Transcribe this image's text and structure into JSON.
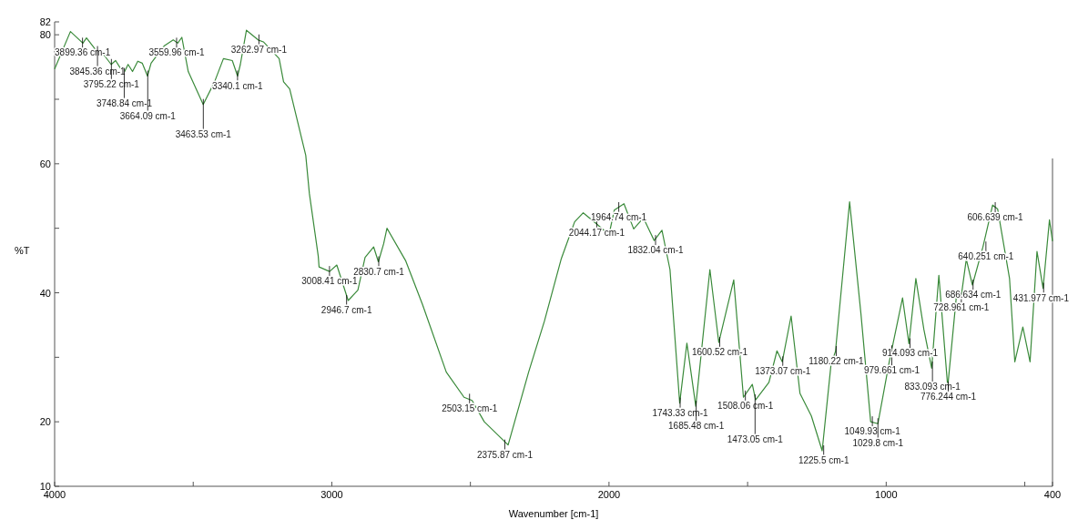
{
  "chart_data": {
    "type": "line",
    "xlabel": "Wavenumber [cm-1]",
    "ylabel": "%T",
    "xlim": [
      4000,
      400
    ],
    "xticks": [
      4000,
      {
        "value": 3500,
        "label": null
      },
      3000,
      {
        "value": 2500,
        "label": null
      },
      2000,
      {
        "value": 1500,
        "label": null
      },
      1000,
      {
        "value": 500,
        "label": null
      },
      400
    ],
    "ylim": [
      10,
      82
    ],
    "yticks": [
      10,
      20,
      {
        "value": 30,
        "label": null
      },
      40,
      {
        "value": 50,
        "label": null
      },
      60,
      {
        "value": 70,
        "label": null
      },
      80,
      82
    ],
    "grid": false,
    "marker": "none",
    "line_style": "solid",
    "series": [
      {
        "color": "#3a8a3a",
        "x": [
          4000,
          3943,
          3898,
          3885,
          3847,
          3828,
          3796,
          3780,
          3751,
          3735,
          3719,
          3700,
          3684,
          3665,
          3652,
          3604,
          3572,
          3556,
          3541,
          3518,
          3464,
          3423,
          3391,
          3359,
          3340,
          3330,
          3308,
          3266,
          3247,
          3190,
          3174,
          3152,
          3094,
          3081,
          3049,
          3046,
          3008,
          2982,
          2941,
          2906,
          2880,
          2849,
          2832,
          2813,
          2801,
          2734,
          2673,
          2587,
          2523,
          2494,
          2450,
          2364,
          2290,
          2233,
          2172,
          2124,
          2093,
          2048,
          2000,
          1981,
          1946,
          1911,
          1876,
          1837,
          1809,
          1780,
          1745,
          1719,
          1687,
          1636,
          1604,
          1550,
          1515,
          1483,
          1471,
          1423,
          1394,
          1375,
          1343,
          1311,
          1270,
          1231,
          1199,
          1183,
          1132,
          1091,
          1056,
          1030,
          989,
          941,
          918,
          893,
          864,
          836,
          810,
          778,
          746,
          730,
          711,
          689,
          651,
          616,
          598,
          555,
          536,
          507,
          481,
          456,
          434,
          411,
          400
        ],
        "values": [
          74.7,
          80.5,
          78.7,
          79.5,
          77.4,
          77.2,
          75.4,
          76,
          74,
          75.4,
          74.3,
          75.9,
          75.6,
          73.6,
          75.6,
          78.3,
          79.2,
          78.7,
          79.6,
          74.3,
          69.2,
          72.7,
          76.3,
          76,
          73.6,
          75.4,
          80.7,
          79.2,
          78.9,
          76.3,
          72.7,
          71.6,
          61.3,
          55.4,
          45.7,
          44,
          43.3,
          44.3,
          38.8,
          40.4,
          45.5,
          47.1,
          44.8,
          47.6,
          50,
          45,
          38.2,
          27.7,
          23.8,
          23.3,
          20,
          16.4,
          27.7,
          35.6,
          45.3,
          51,
          52.4,
          50.8,
          49,
          52.8,
          53.8,
          49.9,
          51.6,
          48.1,
          49.7,
          43.6,
          22.9,
          32.2,
          22.4,
          43.6,
          32.3,
          42,
          23.8,
          25.8,
          23.4,
          26.1,
          31,
          29.3,
          36.4,
          24.4,
          20.9,
          15.5,
          28.9,
          30.9,
          54.1,
          36.7,
          20,
          19.7,
          29.3,
          39.2,
          32.1,
          42.2,
          34.3,
          28.3,
          42.7,
          25.4,
          39.8,
          39.2,
          45.2,
          41.2,
          47.1,
          53.6,
          53,
          42.2,
          29.3,
          34.7,
          29.3,
          46.4,
          40.7,
          51.3,
          48
        ]
      }
    ],
    "annotations": [
      {
        "text": "3899.36 cm-1",
        "x": 3899.36,
        "y": 78.7
      },
      {
        "text": "3845.36 cm-1",
        "x": 3845.36,
        "y": 77.4
      },
      {
        "text": "3795.22 cm-1",
        "x": 3795.22,
        "y": 75.4
      },
      {
        "text": "3748.84 cm-1",
        "x": 3748.84,
        "y": 74
      },
      {
        "text": "3664.09 cm-1",
        "x": 3664.09,
        "y": 73.6
      },
      {
        "text": "3559.96 cm-1",
        "x": 3559.96,
        "y": 78.7
      },
      {
        "text": "3463.53 cm-1",
        "x": 3463.53,
        "y": 69.2
      },
      {
        "text": "3340.1 cm-1",
        "x": 3340.1,
        "y": 73.6
      },
      {
        "text": "3262.97 cm-1",
        "x": 3262.97,
        "y": 79.2
      },
      {
        "text": "3008.41 cm-1",
        "x": 3008.41,
        "y": 43.3
      },
      {
        "text": "2946.7 cm-1",
        "x": 2946.7,
        "y": 38.8
      },
      {
        "text": "2830.7 cm-1",
        "x": 2830.7,
        "y": 44.8
      },
      {
        "text": "2503.15 cm-1",
        "x": 2503.15,
        "y": 23.5
      },
      {
        "text": "2375.87 cm-1",
        "x": 2375.87,
        "y": 16.4
      },
      {
        "text": "2044.17 cm-1",
        "x": 2044.17,
        "y": 50.8
      },
      {
        "text": "1964.74 cm-1",
        "x": 1964.74,
        "y": 53.2
      },
      {
        "text": "1832.04 cm-1",
        "x": 1832.04,
        "y": 48.1
      },
      {
        "text": "1743.33 cm-1",
        "x": 1743.33,
        "y": 22.9
      },
      {
        "text": "1685.48 cm-1",
        "x": 1685.48,
        "y": 22.4
      },
      {
        "text": "1600.52 cm-1",
        "x": 1600.52,
        "y": 32.3
      },
      {
        "text": "1508.06 cm-1",
        "x": 1508.06,
        "y": 24
      },
      {
        "text": "1473.05 cm-1",
        "x": 1473.05,
        "y": 23.4
      },
      {
        "text": "1373.07 cm-1",
        "x": 1373.07,
        "y": 29.3
      },
      {
        "text": "1225.5 cm-1",
        "x": 1225.5,
        "y": 15.5
      },
      {
        "text": "1180.22 cm-1",
        "x": 1180.22,
        "y": 30.9
      },
      {
        "text": "1049.93 cm-1",
        "x": 1049.93,
        "y": 20
      },
      {
        "text": "1029.8 cm-1",
        "x": 1029.8,
        "y": 19.7
      },
      {
        "text": "979.661 cm-1",
        "x": 979.661,
        "y": 31
      },
      {
        "text": "914.093 cm-1",
        "x": 914.093,
        "y": 32.1
      },
      {
        "text": "833.093 cm-1",
        "x": 833.093,
        "y": 28.5
      },
      {
        "text": "776.244 cm-1",
        "x": 776.244,
        "y": 25.4
      },
      {
        "text": "728.961 cm-1",
        "x": 728.961,
        "y": 39.2
      },
      {
        "text": "686.634 cm-1",
        "x": 686.634,
        "y": 41.2
      },
      {
        "text": "640.251 cm-1",
        "x": 640.251,
        "y": 47.1
      },
      {
        "text": "606.639 cm-1",
        "x": 606.639,
        "y": 53.2
      },
      {
        "text": "431.977 cm-1",
        "x": 431.977,
        "y": 40.7
      }
    ]
  }
}
